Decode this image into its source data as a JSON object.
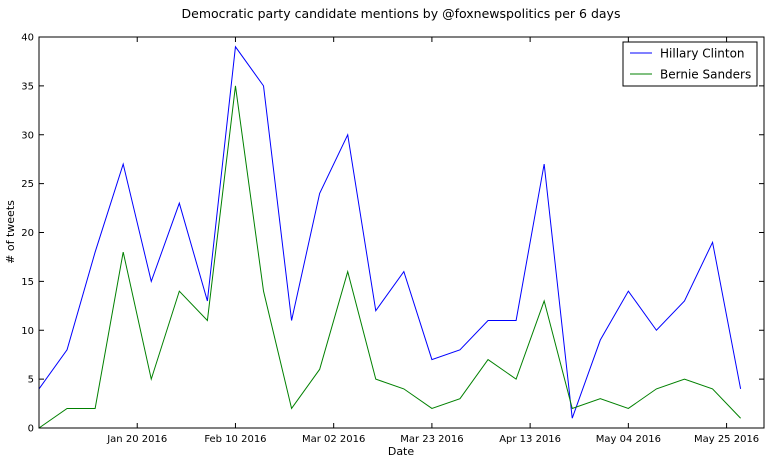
{
  "chart_data": {
    "type": "line",
    "title": "Democratic party candidate mentions by @foxnewspolitics per 6 days",
    "xlabel": "Date",
    "ylabel": "# of tweets",
    "ylim": [
      0,
      40
    ],
    "xlim": [
      "2015-12-30",
      "2016-06-02"
    ],
    "x": [
      "2015-12-30",
      "2016-01-05",
      "2016-01-11",
      "2016-01-17",
      "2016-01-23",
      "2016-01-29",
      "2016-02-04",
      "2016-02-10",
      "2016-02-16",
      "2016-02-22",
      "2016-02-28",
      "2016-03-05",
      "2016-03-11",
      "2016-03-17",
      "2016-03-23",
      "2016-03-29",
      "2016-04-04",
      "2016-04-10",
      "2016-04-16",
      "2016-04-22",
      "2016-04-28",
      "2016-05-04",
      "2016-05-10",
      "2016-05-16",
      "2016-05-22",
      "2016-05-28"
    ],
    "series": [
      {
        "name": "Hillary Clinton",
        "color": "#0000ff",
        "values": [
          4,
          8,
          18,
          27,
          15,
          23,
          13,
          39,
          35,
          11,
          24,
          30,
          12,
          16,
          7,
          8,
          11,
          11,
          27,
          1,
          9,
          14,
          10,
          13,
          19,
          4
        ]
      },
      {
        "name": "Bernie Sanders",
        "color": "#008000",
        "values": [
          0,
          2,
          2,
          18,
          5,
          14,
          11,
          35,
          14,
          2,
          6,
          16,
          5,
          4,
          2,
          3,
          7,
          5,
          13,
          2,
          3,
          2,
          4,
          5,
          4,
          1
        ]
      }
    ],
    "yticks": [
      0,
      5,
      10,
      15,
      20,
      25,
      30,
      35,
      40
    ],
    "xticks": [
      {
        "date": "2016-01-20",
        "label": "Jan 20 2016"
      },
      {
        "date": "2016-02-10",
        "label": "Feb 10 2016"
      },
      {
        "date": "2016-03-02",
        "label": "Mar 02 2016"
      },
      {
        "date": "2016-03-23",
        "label": "Mar 23 2016"
      },
      {
        "date": "2016-04-13",
        "label": "Apr 13 2016"
      },
      {
        "date": "2016-05-04",
        "label": "May 04 2016"
      },
      {
        "date": "2016-05-25",
        "label": "May 25 2016"
      }
    ],
    "grid": false,
    "legend_position": "top-right"
  }
}
